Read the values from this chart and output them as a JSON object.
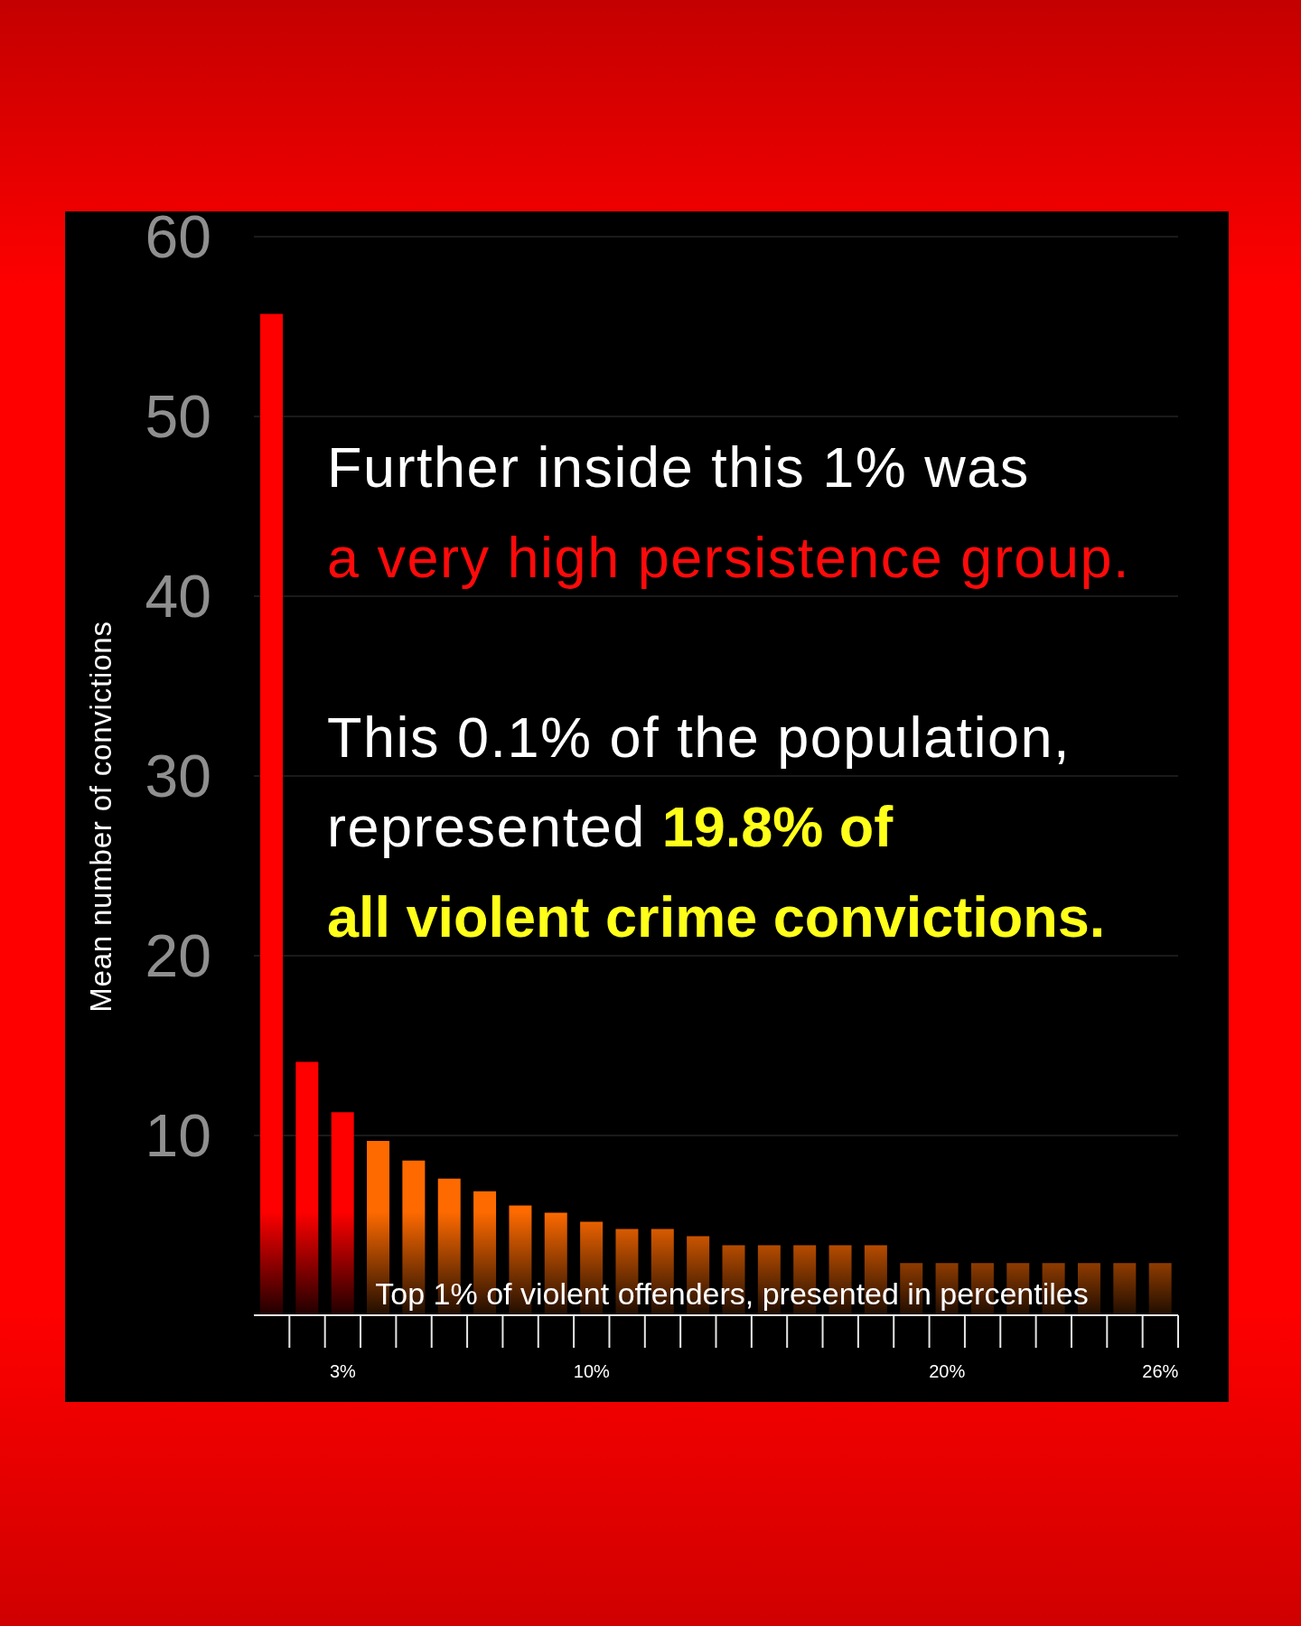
{
  "chart_data": {
    "type": "bar",
    "xlabel": "Top 1% of violent offenders, presented in percentiles",
    "ylabel": "Mean number of convictions",
    "categories": [
      null,
      null,
      "3%",
      null,
      null,
      null,
      null,
      null,
      null,
      "10%",
      null,
      null,
      null,
      null,
      null,
      null,
      null,
      null,
      null,
      "20%",
      null,
      null,
      null,
      null,
      null,
      "26%"
    ],
    "values": [
      55.7,
      14.1,
      11.3,
      9.7,
      8.6,
      7.6,
      6.9,
      6.1,
      5.7,
      5.2,
      4.8,
      4.8,
      4.4,
      3.9,
      3.9,
      3.9,
      3.9,
      3.9,
      2.9,
      2.9,
      2.9,
      2.9,
      2.9,
      2.9,
      2.9,
      2.9
    ],
    "colors": [
      "#ff0000",
      "#ff0000",
      "#ff0000",
      "#ff6a00",
      "#ff6a00",
      "#ff6a00",
      "#ff6a00",
      "#ff6a00",
      "#ff6a00",
      "#ff6a00",
      "#ff6a00",
      "#ff6a00",
      "#ff6a00",
      "#ff6a00",
      "#ff6a00",
      "#ff6a00",
      "#ff6a00",
      "#ff6a00",
      "#ff6a00",
      "#ff6a00",
      "#ff6a00",
      "#ff6a00",
      "#ff6a00",
      "#ff6a00",
      "#ff6a00",
      "#ff6a00"
    ],
    "ylim": [
      0,
      60
    ],
    "yticks": [
      10,
      20,
      30,
      40,
      50,
      60
    ],
    "grid": "y",
    "annotations": [
      "Further inside this 1% was",
      "a very high persistence group.",
      "This 0.1% of the population,",
      "represented",
      "19.8% of",
      "all violent crime convictions."
    ]
  }
}
